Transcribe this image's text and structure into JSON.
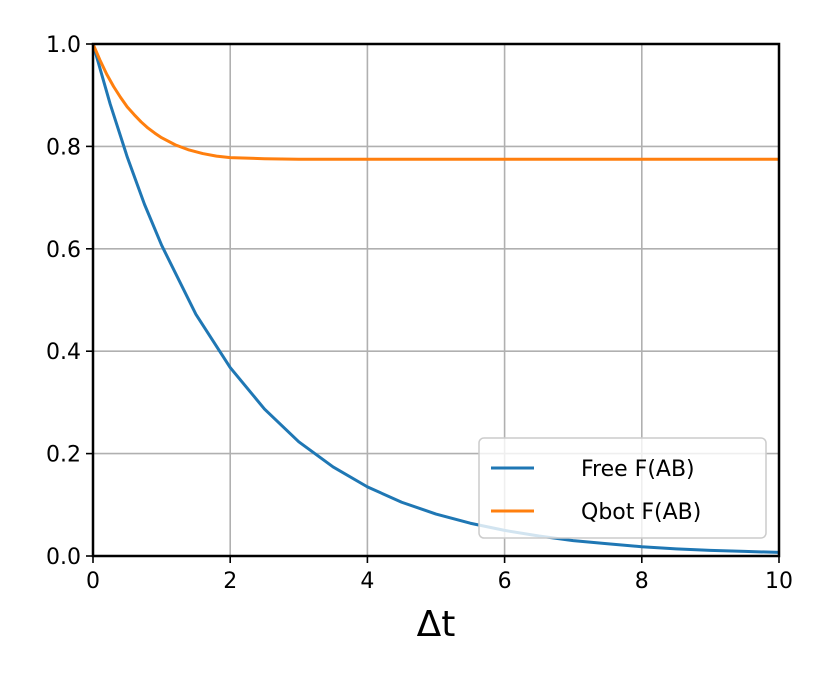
{
  "chart_data": {
    "type": "line",
    "xlabel": "Δt",
    "ylabel": "",
    "title": "",
    "xlim": [
      0,
      10
    ],
    "ylim": [
      0,
      1
    ],
    "xticks": [
      0,
      2,
      4,
      6,
      8,
      10
    ],
    "yticks": [
      0.0,
      0.2,
      0.4,
      0.6,
      0.8,
      1.0
    ],
    "xtick_labels": [
      "0",
      "2",
      "4",
      "6",
      "8",
      "10"
    ],
    "ytick_labels": [
      "0.0",
      "0.2",
      "0.4",
      "0.6",
      "0.8",
      "1.0"
    ],
    "grid": true,
    "legend_position": "lower-right",
    "series": [
      {
        "name": "Free F(AB)",
        "color": "#1f77b4",
        "x": [
          0,
          0.25,
          0.5,
          0.75,
          1,
          1.5,
          2,
          2.5,
          3,
          3.5,
          4,
          4.5,
          5,
          5.5,
          6,
          6.5,
          7,
          7.5,
          8,
          8.5,
          9,
          9.5,
          10
        ],
        "y": [
          1.0,
          0.883,
          0.779,
          0.687,
          0.607,
          0.472,
          0.368,
          0.287,
          0.223,
          0.174,
          0.135,
          0.105,
          0.082,
          0.064,
          0.05,
          0.039,
          0.03,
          0.024,
          0.018,
          0.014,
          0.011,
          0.009,
          0.007
        ]
      },
      {
        "name": "Qbot F(AB)",
        "color": "#ff7f0e",
        "x": [
          0,
          0.1,
          0.2,
          0.3,
          0.4,
          0.5,
          0.6,
          0.7,
          0.8,
          0.9,
          1.0,
          1.2,
          1.4,
          1.6,
          1.8,
          2.0,
          2.5,
          3,
          4,
          5,
          6,
          7,
          8,
          9,
          10
        ],
        "y": [
          1.0,
          0.969,
          0.941,
          0.917,
          0.896,
          0.877,
          0.862,
          0.848,
          0.836,
          0.826,
          0.817,
          0.803,
          0.793,
          0.786,
          0.781,
          0.778,
          0.776,
          0.775,
          0.775,
          0.775,
          0.775,
          0.775,
          0.775,
          0.775,
          0.775
        ]
      }
    ]
  }
}
